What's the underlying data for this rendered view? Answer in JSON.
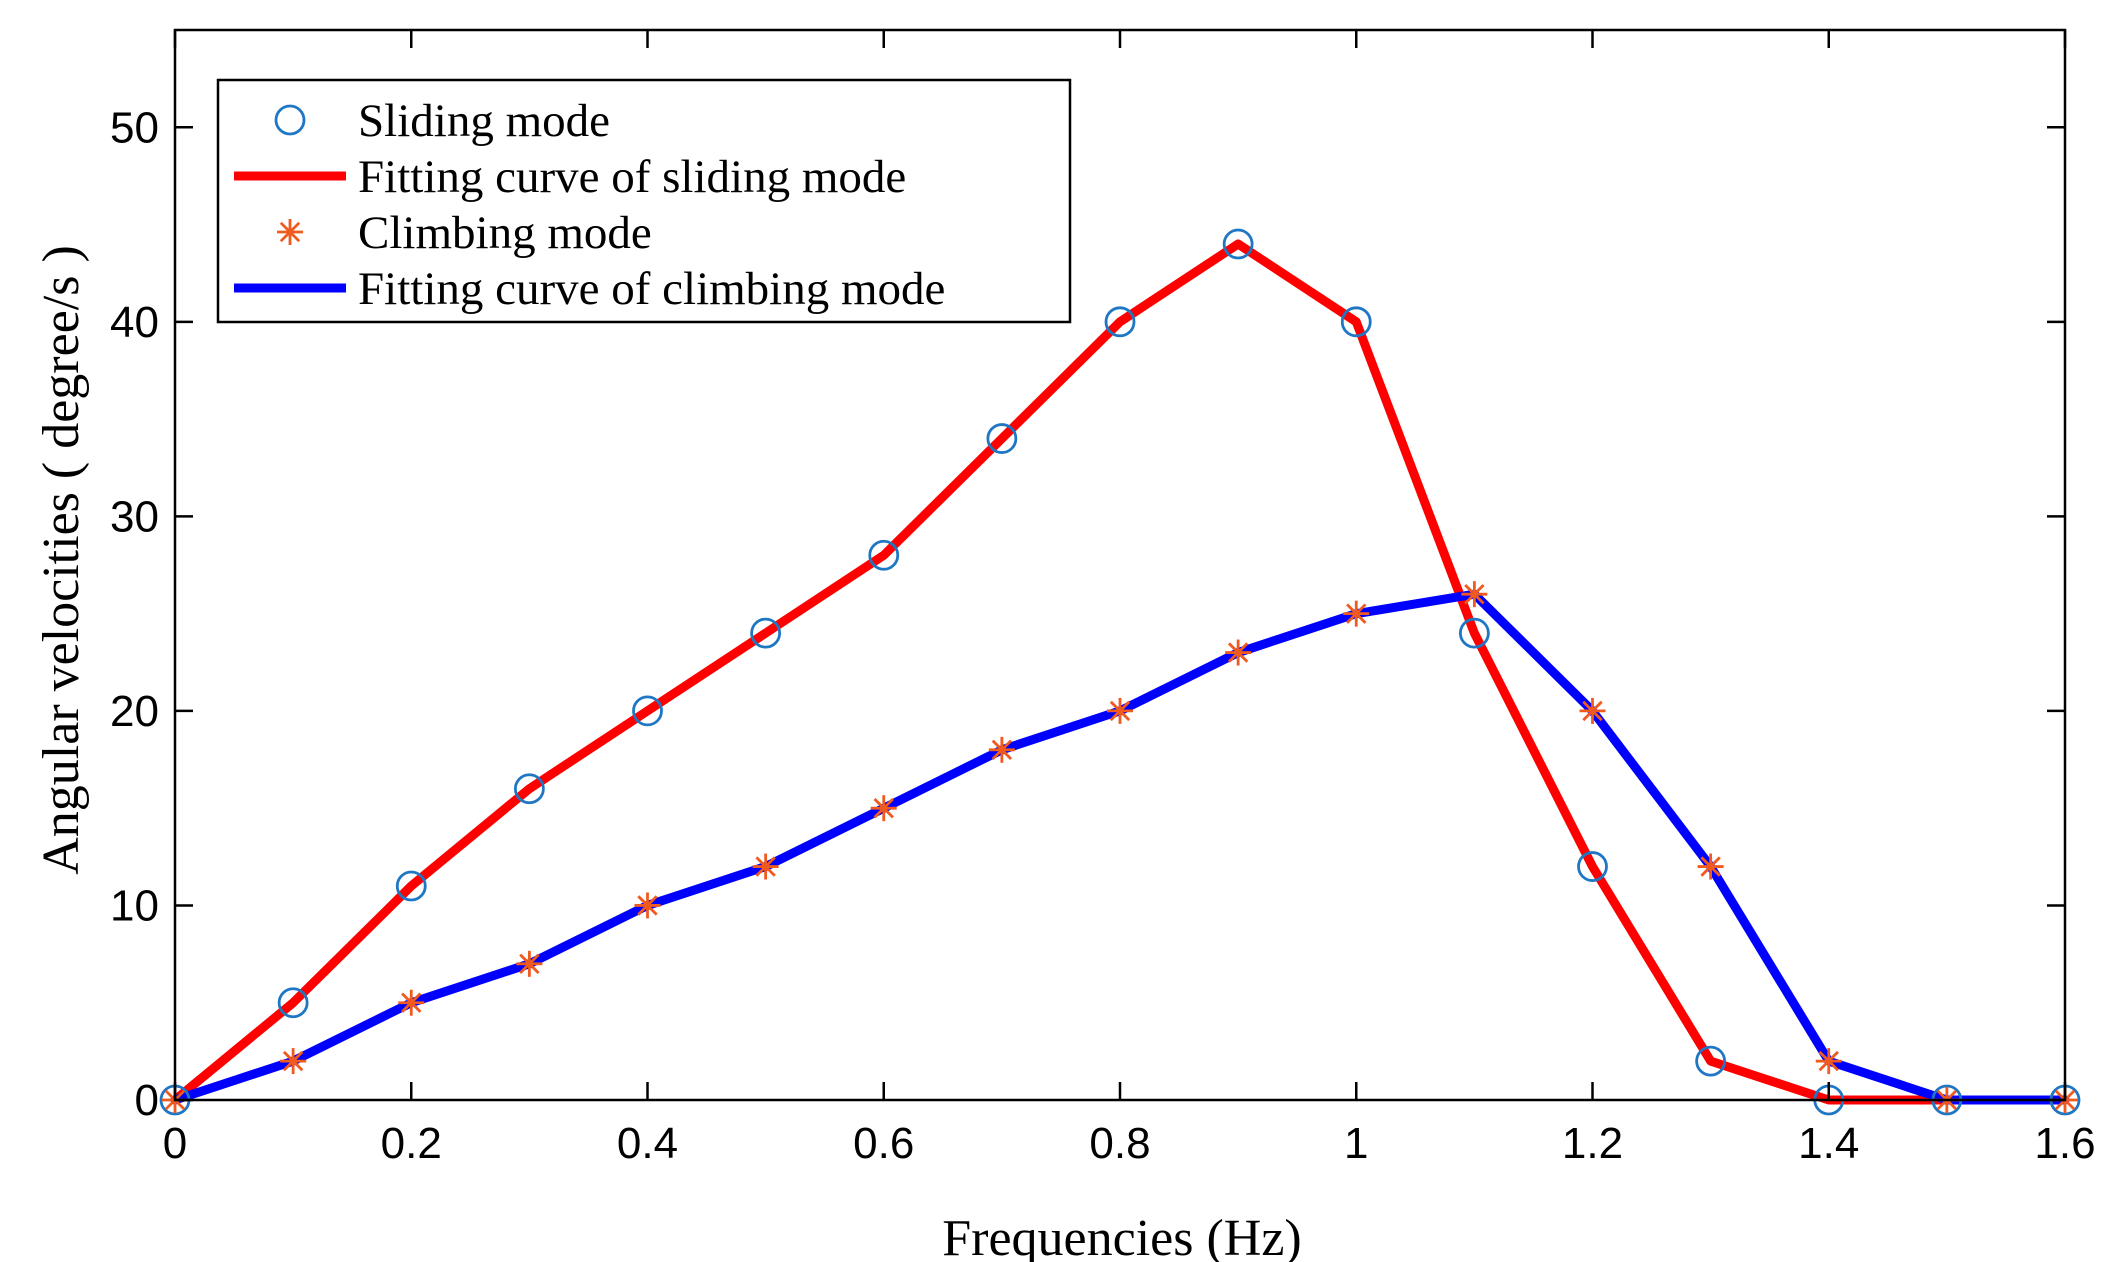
{
  "chart_data": {
    "type": "line",
    "title": "",
    "xlabel": "Frequencies (Hz)",
    "ylabel": "Angular velocities ( degree/s )",
    "xlim": [
      0,
      1.6
    ],
    "ylim": [
      0,
      55
    ],
    "xticks": [
      0,
      0.2,
      0.4,
      0.6,
      0.8,
      1,
      1.2,
      1.4,
      1.6
    ],
    "xtick_labels": [
      "0",
      "0.2",
      "0.4",
      "0.6",
      "0.8",
      "1",
      "1.2",
      "1.4",
      "1.6"
    ],
    "yticks": [
      0,
      10,
      20,
      30,
      40,
      50
    ],
    "ytick_labels": [
      "0",
      "10",
      "20",
      "30",
      "40",
      "50"
    ],
    "grid": false,
    "legend_position": "top-left",
    "x": [
      0,
      0.1,
      0.2,
      0.3,
      0.4,
      0.5,
      0.6,
      0.7,
      0.8,
      0.9,
      1.0,
      1.1,
      1.2,
      1.3,
      1.4,
      1.5,
      1.6
    ],
    "series": [
      {
        "name": "Sliding mode",
        "style": "markers",
        "marker": "circle",
        "color": "#1f77c4",
        "values": [
          0,
          5,
          11,
          16,
          20,
          24,
          28,
          34,
          40,
          44,
          40,
          24,
          12,
          2,
          0,
          0,
          0
        ]
      },
      {
        "name": "Fitting curve of sliding mode",
        "style": "line",
        "color": "#ff0000",
        "values": [
          0,
          5,
          11,
          16,
          20,
          24,
          28,
          34,
          40,
          44,
          40,
          24,
          12,
          2,
          0,
          0,
          0
        ]
      },
      {
        "name": "Climbing mode",
        "style": "markers",
        "marker": "asterisk",
        "color": "#f05a1e",
        "values": [
          0,
          2,
          5,
          7,
          10,
          12,
          15,
          18,
          20,
          23,
          25,
          26,
          20,
          12,
          2,
          0,
          0
        ]
      },
      {
        "name": "Fitting curve of climbing mode",
        "style": "line",
        "color": "#0000ff",
        "values": [
          0,
          2,
          5,
          7,
          10,
          12,
          15,
          18,
          20,
          23,
          25,
          26,
          20,
          12,
          2,
          0,
          0
        ]
      }
    ]
  }
}
